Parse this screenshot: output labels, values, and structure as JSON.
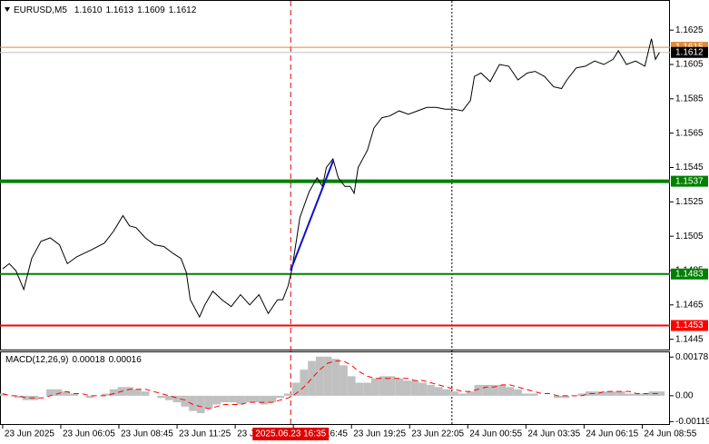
{
  "chart_data": [
    {
      "type": "line",
      "title": "EURUSD,M5",
      "ohlc": [
        "1.1610",
        "1.1613",
        "1.1609",
        "1.1612"
      ],
      "color": "#000000",
      "x": [
        0,
        5,
        10,
        16,
        22,
        29,
        36,
        43,
        49,
        56,
        67,
        77,
        84,
        91,
        96,
        101,
        108,
        115,
        122,
        129,
        135,
        139,
        142,
        149,
        153,
        159,
        166,
        173,
        180,
        187,
        194,
        201,
        208,
        212,
        216,
        219,
        225,
        232,
        238,
        242,
        245,
        250,
        254,
        259,
        263,
        266,
        269,
        276,
        281,
        287,
        293,
        300,
        307,
        314,
        321,
        328,
        335,
        342,
        348,
        354,
        357,
        362,
        369,
        376,
        383,
        390,
        397,
        403,
        410,
        417,
        423,
        427,
        434,
        441,
        448,
        455,
        462,
        466,
        472,
        479,
        486,
        491,
        494,
        497
      ],
      "values": [
        1.1486,
        1.1489,
        1.1485,
        1.1474,
        1.1492,
        1.1502,
        1.1504,
        1.15,
        1.1489,
        1.1493,
        1.1497,
        1.1501,
        1.1508,
        1.1517,
        1.1511,
        1.151,
        1.1504,
        1.15,
        1.1499,
        1.1495,
        1.1492,
        1.1484,
        1.1468,
        1.1458,
        1.1465,
        1.1473,
        1.1468,
        1.1464,
        1.1471,
        1.1465,
        1.1471,
        1.146,
        1.1468,
        1.1468,
        1.1476,
        1.1486,
        1.1516,
        1.1531,
        1.1539,
        1.1534,
        1.1545,
        1.155,
        1.1539,
        1.1534,
        1.1534,
        1.153,
        1.1545,
        1.1555,
        1.1568,
        1.1574,
        1.1575,
        1.1578,
        1.1576,
        1.1578,
        1.158,
        1.158,
        1.1579,
        1.1579,
        1.1578,
        1.1584,
        1.1598,
        1.16,
        1.1595,
        1.1605,
        1.1604,
        1.1596,
        1.16,
        1.1601,
        1.1598,
        1.1592,
        1.1591,
        1.1596,
        1.1603,
        1.1604,
        1.1607,
        1.1605,
        1.1608,
        1.1613,
        1.1605,
        1.1607,
        1.1604,
        1.162,
        1.1608,
        1.1612
      ],
      "xlim": [
        -2,
        505
      ],
      "xticks": [
        {
          "value": 0,
          "label": "23 Jun 2025"
        },
        {
          "value": 44,
          "label": "23 Jun 06:05"
        },
        {
          "value": 88,
          "label": "23 Jun 08:45"
        },
        {
          "value": 132,
          "label": "23 Jun 11:25"
        },
        {
          "value": 176,
          "label": "23 Jun 14:05"
        },
        {
          "value": 220,
          "label": "23 Jun 16:45"
        },
        {
          "value": 264,
          "label": "23 Jun 19:25"
        },
        {
          "value": 308,
          "label": "23 Jun 22:05"
        },
        {
          "value": 352,
          "label": "24 Jun 00:55"
        },
        {
          "value": 396,
          "label": "24 Jun 03:35"
        },
        {
          "value": 440,
          "label": "24 Jun 06:15"
        },
        {
          "value": 484,
          "label": "24 Jun 08:55"
        }
      ],
      "ylim": [
        1.1439,
        1.1642
      ],
      "yticks": [
        1.1625,
        1.1605,
        1.1585,
        1.1565,
        1.1545,
        1.1525,
        1.1505,
        1.1485,
        1.1465,
        1.1445
      ],
      "grid": false,
      "levels": [
        {
          "value": 1.1615,
          "color": "#e08a3c",
          "width": 1,
          "label_color": "#ffffff"
        },
        {
          "value": 1.1612,
          "color": "#c0c0c0",
          "width": 1,
          "box": "#000000",
          "label_color": "#ffffff"
        },
        {
          "value": 1.1537,
          "color": "#008000",
          "width": 4,
          "label_color": "#ffffff"
        },
        {
          "value": 1.1483,
          "color": "#008000",
          "width": 2,
          "label_color": "#ffffff"
        },
        {
          "value": 1.1453,
          "color": "#ff0000",
          "width": 2,
          "label_color": "#ffffff"
        }
      ],
      "vlines": [
        {
          "x": 218,
          "color": "#e00000",
          "style": "dashed",
          "label": "2025.06.23 16:35"
        },
        {
          "x": 340,
          "color": "#000000",
          "style": "dotted"
        }
      ]
    },
    {
      "type": "bar",
      "title": "MACD(12,26,9)",
      "readout": [
        "0.00018",
        "0.00016"
      ],
      "x": [
        0,
        6,
        12,
        18,
        24,
        30,
        36,
        42,
        48,
        54,
        60,
        66,
        72,
        78,
        84,
        90,
        96,
        102,
        108,
        114,
        120,
        126,
        132,
        138,
        144,
        150,
        156,
        162,
        168,
        174,
        180,
        186,
        192,
        198,
        204,
        210,
        216,
        222,
        228,
        234,
        240,
        246,
        252,
        258,
        264,
        270,
        276,
        282,
        288,
        294,
        300,
        306,
        312,
        318,
        324,
        330,
        336,
        342,
        348,
        354,
        360,
        366,
        372,
        378,
        384,
        390,
        396,
        402,
        408,
        414,
        420,
        426,
        432,
        438,
        444,
        450,
        456,
        462,
        468,
        474,
        480,
        486,
        492,
        498
      ],
      "xlim": [
        -2,
        505
      ],
      "ylim": [
        -0.0013,
        0.002
      ],
      "yticks": [
        0.00178,
        {
          "value": 0,
          "label": "0.00"
        },
        -0.00119
      ],
      "series": [
        {
          "color": "#c0c0c0",
          "type": "bar",
          "values": [
            0.0001,
            0,
            -0.0001,
            -0.0002,
            -0.0002,
            0,
            0.0003,
            0.0003,
            0.0002,
            0.0001,
            0,
            -0.0001,
            0,
            0.0001,
            0.0003,
            0.0004,
            0.0004,
            0.0003,
            0.0002,
            0,
            -0.0001,
            -0.0002,
            -0.0003,
            -0.0005,
            -0.0007,
            -0.0008,
            -0.0006,
            -0.0004,
            -0.0003,
            -0.0003,
            -0.0004,
            -0.0003,
            -0.0003,
            -0.0004,
            -0.0003,
            -0.0001,
            0.0001,
            0.0006,
            0.0012,
            0.0016,
            0.0018,
            0.0018,
            0.0017,
            0.0014,
            0.0009,
            0.0006,
            0.0006,
            0.0008,
            0.0009,
            0.0009,
            0.0008,
            0.0007,
            0.0007,
            0.0006,
            0.0005,
            0.0004,
            0.0003,
            0.0002,
            0.0001,
            0.0002,
            0.0005,
            0.0005,
            0.0005,
            0.0005,
            0.0004,
            0.0003,
            0.0001,
            0.0001,
            0,
            0,
            -0.0001,
            -0.0001,
            0,
            0.0001,
            0.0002,
            0.0002,
            0.0002,
            0.0002,
            0.0002,
            0.0001,
            0.0001,
            0.0001,
            0.0002,
            0.0002
          ]
        },
        {
          "color": "#ff0000",
          "type": "line",
          "style": "dashed",
          "values": [
            0.0001,
            0,
            0,
            -0.0001,
            -0.0001,
            -0.0001,
            0,
            0.0001,
            0.0002,
            0.0001,
            0.0001,
            0,
            0,
            0,
            0.0001,
            0.0002,
            0.0003,
            0.0003,
            0.0003,
            0.0002,
            0.0001,
            0,
            -0.0001,
            -0.0002,
            -0.0004,
            -0.0005,
            -0.0006,
            -0.0005,
            -0.0004,
            -0.0004,
            -0.0004,
            -0.0003,
            -0.0003,
            -0.0003,
            -0.0003,
            -0.0002,
            -0.0001,
            0.0001,
            0.0004,
            0.0008,
            0.0012,
            0.0015,
            0.0016,
            0.0016,
            0.0014,
            0.0011,
            0.0009,
            0.0008,
            0.0008,
            0.0008,
            0.0008,
            0.0008,
            0.0007,
            0.0007,
            0.0006,
            0.0005,
            0.0004,
            0.0003,
            0.0002,
            0.0002,
            0.0003,
            0.0004,
            0.0004,
            0.0005,
            0.0005,
            0.0004,
            0.0003,
            0.0002,
            0.0001,
            0.0001,
            0,
            0,
            0,
            0,
            0.0001,
            0.0001,
            0.0002,
            0.0002,
            0.0002,
            0.0002,
            0.0001,
            0.0001,
            0.0001,
            0.0001
          ]
        }
      ]
    }
  ]
}
